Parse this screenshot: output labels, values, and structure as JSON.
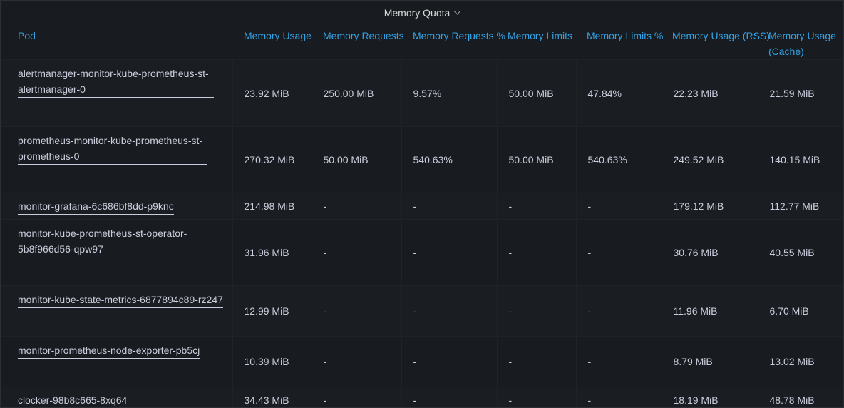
{
  "panel": {
    "title": "Memory Quota"
  },
  "columns": [
    "Pod",
    "Memory Usage",
    "Memory Requests",
    "Memory Requests %",
    "Memory Limits",
    "Memory Limits %",
    "Memory Usage (RSS)",
    "Memory Usage (Cache)"
  ],
  "rows": [
    {
      "pod": "alertmanager-monitor-kube-prometheus-st-alertmanager-0",
      "usage": "23.92 MiB",
      "requests": "250.00 MiB",
      "requests_pct": "9.57%",
      "limits": "50.00 MiB",
      "limits_pct": "47.84%",
      "rss": "22.23 MiB",
      "cache": "21.59 MiB"
    },
    {
      "pod": "prometheus-monitor-kube-prometheus-st-prometheus-0",
      "usage": "270.32 MiB",
      "requests": "50.00 MiB",
      "requests_pct": "540.63%",
      "limits": "50.00 MiB",
      "limits_pct": "540.63%",
      "rss": "249.52 MiB",
      "cache": "140.15 MiB"
    },
    {
      "pod": "monitor-grafana-6c686bf8dd-p9knc",
      "usage": "214.98 MiB",
      "requests": "-",
      "requests_pct": "-",
      "limits": "-",
      "limits_pct": "-",
      "rss": "179.12 MiB",
      "cache": "112.77 MiB"
    },
    {
      "pod": "monitor-kube-prometheus-st-operator-5b8f966d56-qpw97",
      "usage": "31.96 MiB",
      "requests": "-",
      "requests_pct": "-",
      "limits": "-",
      "limits_pct": "-",
      "rss": "30.76 MiB",
      "cache": "40.55 MiB"
    },
    {
      "pod": "monitor-kube-state-metrics-6877894c89-rz247",
      "usage": "12.99 MiB",
      "requests": "-",
      "requests_pct": "-",
      "limits": "-",
      "limits_pct": "-",
      "rss": "11.96 MiB",
      "cache": "6.70 MiB"
    },
    {
      "pod": "monitor-prometheus-node-exporter-pb5cj",
      "usage": "10.39 MiB",
      "requests": "-",
      "requests_pct": "-",
      "limits": "-",
      "limits_pct": "-",
      "rss": "8.79 MiB",
      "cache": "13.02 MiB"
    },
    {
      "pod": "clocker-98b8c665-8xq64",
      "usage": "34.43 MiB",
      "requests": "-",
      "requests_pct": "-",
      "limits": "-",
      "limits_pct": "-",
      "rss": "18.19 MiB",
      "cache": "48.78 MiB"
    }
  ]
}
